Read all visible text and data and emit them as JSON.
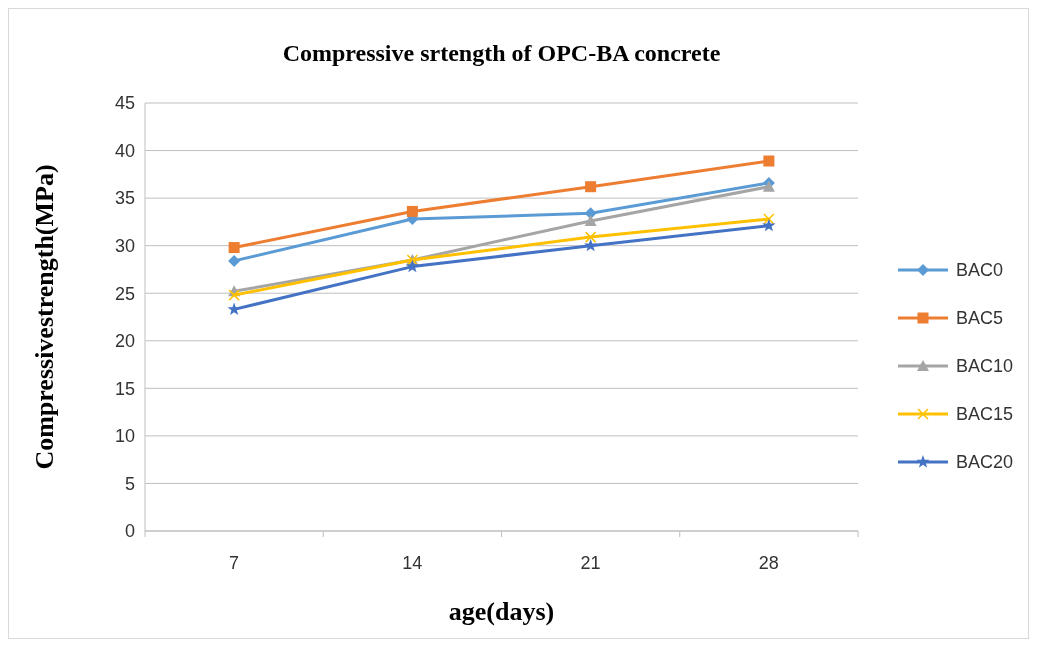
{
  "chart_data": {
    "type": "line",
    "title": "Compressive srtength of OPC-BA concrete",
    "xlabel": "age(days)",
    "ylabel": "Compressivestrength(MPa)",
    "categories": [
      "7",
      "14",
      "21",
      "28"
    ],
    "series": [
      {
        "name": "BAC0",
        "color": "#5b9bd5",
        "marker": "diamond",
        "values": [
          28.4,
          32.8,
          33.4,
          36.6
        ]
      },
      {
        "name": "BAC5",
        "color": "#ed7d31",
        "marker": "square",
        "values": [
          29.8,
          33.6,
          36.2,
          38.9
        ]
      },
      {
        "name": "BAC10",
        "color": "#a5a5a5",
        "marker": "triangle",
        "values": [
          25.2,
          28.5,
          32.6,
          36.2
        ]
      },
      {
        "name": "BAC15",
        "color": "#ffc000",
        "marker": "cross",
        "values": [
          24.8,
          28.5,
          30.9,
          32.8
        ]
      },
      {
        "name": "BAC20",
        "color": "#4472c4",
        "marker": "star",
        "values": [
          23.3,
          27.8,
          30.0,
          32.1
        ]
      }
    ],
    "ylim": [
      0,
      45
    ],
    "yticks": [
      0,
      5,
      10,
      15,
      20,
      25,
      30,
      35,
      40,
      45
    ],
    "grid": "y",
    "legend": "right"
  }
}
